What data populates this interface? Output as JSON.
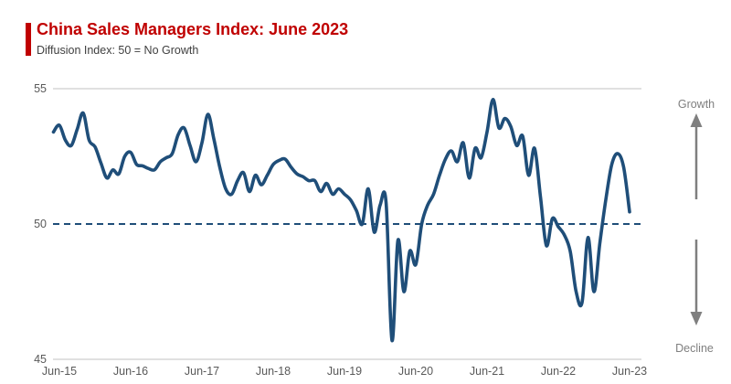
{
  "header": {
    "title": "China Sales Managers Index: June 2023",
    "subtitle": "Diffusion Index: 50 = No Growth",
    "accent_color": "#C00000",
    "title_color": "#C00000",
    "subtitle_color": "#404040"
  },
  "annotations": {
    "growth_label": "Growth",
    "decline_label": "Decline",
    "arrow_color": "#7F7F7F"
  },
  "colors": {
    "series_line": "#1F4E79",
    "reference_line": "#1F4E79",
    "gridline": "#D6D6D6",
    "axis_text": "#595959"
  },
  "chart_data": {
    "type": "line",
    "title": "China Sales Managers Index: June 2023",
    "subtitle": "Diffusion Index: 50 = No Growth",
    "xlabel": "",
    "ylabel": "",
    "ylim": [
      45,
      55
    ],
    "y_ticks": [
      55,
      50,
      45
    ],
    "x_tick_labels": [
      "Jun-15",
      "Jun-16",
      "Jun-17",
      "Jun-18",
      "Jun-19",
      "Jun-20",
      "Jun-21",
      "Jun-22",
      "Jun-23"
    ],
    "grid": "horizontal-top-bottom-only",
    "legend": "none",
    "reference_line": {
      "value": 50,
      "style": "dashed",
      "meaning": "50 = No Growth"
    },
    "x": [
      "May-15",
      "Jun-15",
      "Jul-15",
      "Aug-15",
      "Sep-15",
      "Oct-15",
      "Nov-15",
      "Dec-15",
      "Jan-16",
      "Feb-16",
      "Mar-16",
      "Apr-16",
      "May-16",
      "Jun-16",
      "Jul-16",
      "Aug-16",
      "Sep-16",
      "Oct-16",
      "Nov-16",
      "Dec-16",
      "Jan-17",
      "Feb-17",
      "Mar-17",
      "Apr-17",
      "May-17",
      "Jun-17",
      "Jul-17",
      "Aug-17",
      "Sep-17",
      "Oct-17",
      "Nov-17",
      "Dec-17",
      "Jan-18",
      "Feb-18",
      "Mar-18",
      "Apr-18",
      "May-18",
      "Jun-18",
      "Jul-18",
      "Aug-18",
      "Sep-18",
      "Oct-18",
      "Nov-18",
      "Dec-18",
      "Jan-19",
      "Feb-19",
      "Mar-19",
      "Apr-19",
      "May-19",
      "Jun-19",
      "Jul-19",
      "Aug-19",
      "Sep-19",
      "Oct-19",
      "Nov-19",
      "Dec-19",
      "Jan-20",
      "Feb-20",
      "Mar-20",
      "Apr-20",
      "May-20",
      "Jun-20",
      "Jul-20",
      "Aug-20",
      "Sep-20",
      "Oct-20",
      "Nov-20",
      "Dec-20",
      "Jan-21",
      "Feb-21",
      "Mar-21",
      "Apr-21",
      "May-21",
      "Jun-21",
      "Jul-21",
      "Aug-21",
      "Sep-21",
      "Oct-21",
      "Nov-21",
      "Dec-21",
      "Jan-22",
      "Feb-22",
      "Mar-22",
      "Apr-22",
      "May-22",
      "Jun-22",
      "Jul-22",
      "Aug-22",
      "Sep-22",
      "Oct-22",
      "Nov-22",
      "Dec-22",
      "Jan-23",
      "Feb-23",
      "Mar-23",
      "Apr-23",
      "May-23",
      "Jun-23"
    ],
    "values": [
      53.4,
      53.65,
      53.1,
      52.9,
      53.5,
      54.1,
      53.1,
      52.85,
      52.25,
      51.7,
      52.0,
      51.85,
      52.5,
      52.65,
      52.2,
      52.15,
      52.05,
      52.0,
      52.3,
      52.45,
      52.6,
      53.3,
      53.55,
      52.9,
      52.3,
      53.0,
      54.05,
      53.15,
      52.1,
      51.3,
      51.1,
      51.6,
      51.9,
      51.2,
      51.8,
      51.45,
      51.8,
      52.2,
      52.35,
      52.4,
      52.1,
      51.85,
      51.75,
      51.6,
      51.6,
      51.2,
      51.5,
      51.1,
      51.3,
      51.1,
      50.9,
      50.5,
      50.0,
      51.3,
      49.7,
      50.7,
      50.8,
      45.7,
      49.4,
      47.5,
      49.0,
      48.5,
      50.0,
      50.7,
      51.1,
      51.8,
      52.4,
      52.7,
      52.3,
      53.0,
      51.7,
      52.8,
      52.45,
      53.4,
      54.6,
      53.55,
      53.9,
      53.6,
      52.9,
      53.25,
      51.8,
      52.8,
      51.0,
      49.2,
      50.2,
      49.9,
      49.6,
      49.0,
      47.5,
      47.1,
      49.5,
      47.5,
      49.3,
      50.9,
      52.2,
      52.6,
      52.1,
      50.45
    ]
  }
}
